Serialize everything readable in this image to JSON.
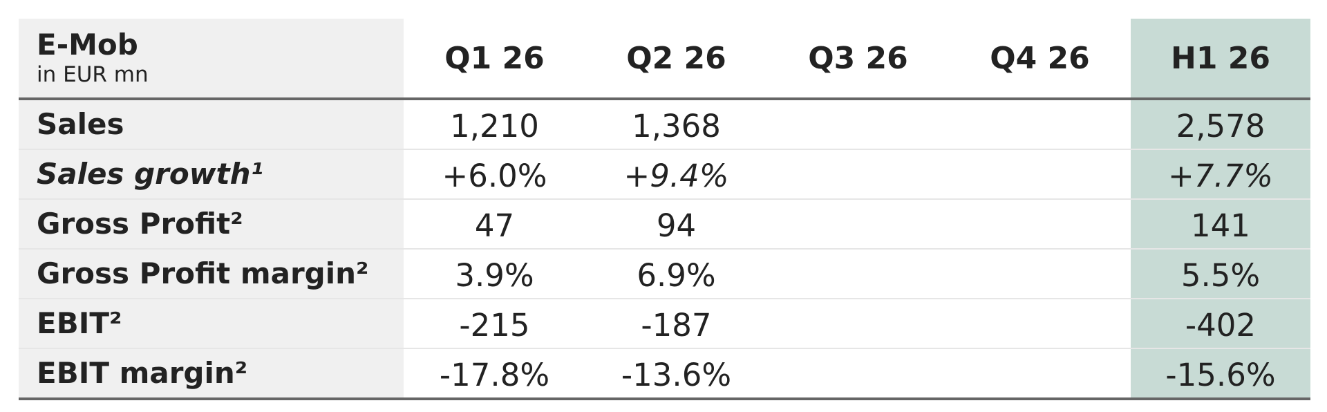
{
  "table": {
    "title": "E-Mob",
    "subtitle": "in EUR mn",
    "columns": [
      "Q1 26",
      "Q2 26",
      "Q3 26",
      "Q4 26",
      "H1 26"
    ],
    "rows": [
      {
        "label": "Sales",
        "italic": false,
        "values": [
          "1,210",
          "1,368",
          "",
          "",
          "2,578"
        ]
      },
      {
        "label": "Sales growth¹",
        "italic": true,
        "values": [
          "+6.0%",
          "+9.4%",
          "",
          "",
          "+7.7%"
        ]
      },
      {
        "label": "Gross Profit²",
        "italic": false,
        "values": [
          "47",
          "94",
          "",
          "",
          "141"
        ]
      },
      {
        "label": "Gross Profit margin²",
        "italic": false,
        "values": [
          "3.9%",
          "6.9%",
          "",
          "",
          "5.5%"
        ]
      },
      {
        "label": "EBIT²",
        "italic": false,
        "values": [
          "-215",
          "-187",
          "",
          "",
          "-402"
        ]
      },
      {
        "label": "EBIT margin²",
        "italic": false,
        "values": [
          "-17.8%",
          "-13.6%",
          "",
          "",
          "-15.6%"
        ]
      }
    ]
  },
  "colors": {
    "label_bg": "#f0f0f0",
    "highlight_bg": "#c8dbd5",
    "rule": "#666666"
  }
}
